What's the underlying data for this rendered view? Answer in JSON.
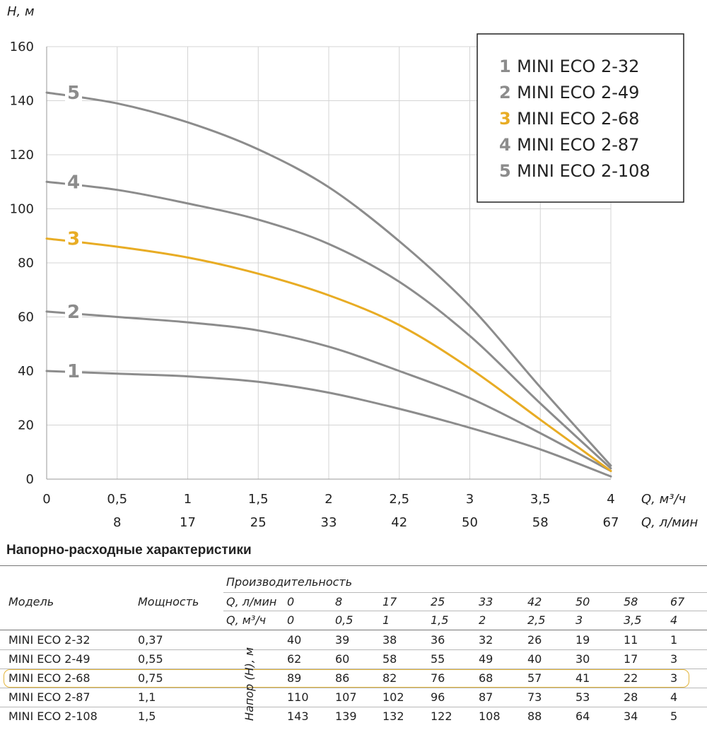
{
  "chart_data": {
    "type": "line",
    "ylabel": "H, м",
    "xlabel_top": "Q, м³/ч",
    "xlabel_bottom": "Q, л/мин",
    "ylim": [
      0,
      160
    ],
    "y_ticks": [
      "0",
      "20",
      "40",
      "60",
      "80",
      "100",
      "120",
      "140",
      "160"
    ],
    "x": [
      0,
      0.5,
      1,
      1.5,
      2,
      2.5,
      3,
      3.5,
      4
    ],
    "x_ticks_top": [
      "0",
      "0,5",
      "1",
      "1,5",
      "2",
      "2,5",
      "3",
      "3,5",
      "4"
    ],
    "x_ticks_bottom": [
      "",
      "8",
      "17",
      "25",
      "33",
      "42",
      "50",
      "58",
      "67"
    ],
    "grid": true,
    "legend_position": "top-right",
    "series": [
      {
        "label": "1",
        "name": "MINI ECO 2-32",
        "color": "#8c8c8c",
        "values": [
          40,
          39,
          38,
          36,
          32,
          26,
          19,
          11,
          1
        ]
      },
      {
        "label": "2",
        "name": "MINI ECO 2-49",
        "color": "#8c8c8c",
        "values": [
          62,
          60,
          58,
          55,
          49,
          40,
          30,
          17,
          3
        ]
      },
      {
        "label": "3",
        "name": "MINI ECO 2-68",
        "color": "#e8ac24",
        "values": [
          89,
          86,
          82,
          76,
          68,
          57,
          41,
          22,
          3
        ]
      },
      {
        "label": "4",
        "name": "MINI ECO 2-87",
        "color": "#8c8c8c",
        "values": [
          110,
          107,
          102,
          96,
          87,
          73,
          53,
          28,
          4
        ]
      },
      {
        "label": "5",
        "name": "MINI ECO 2-108",
        "color": "#8c8c8c",
        "values": [
          143,
          139,
          132,
          122,
          108,
          88,
          64,
          34,
          5
        ]
      }
    ]
  },
  "table": {
    "title": "Напорно-расходные характеристики",
    "col_model": "Модель",
    "col_power": "Мощность",
    "col_perf": "Производительность",
    "q_lmin_label": "Q, л/мин",
    "q_m3h_label": "Q, м³/ч",
    "head_label": "Напор (Н), м",
    "q_lmin": [
      "0",
      "8",
      "17",
      "25",
      "33",
      "42",
      "50",
      "58",
      "67"
    ],
    "q_m3h": [
      "0",
      "0,5",
      "1",
      "1,5",
      "2",
      "2,5",
      "3",
      "3,5",
      "4"
    ],
    "rows": [
      {
        "model": "MINI ECO 2-32",
        "power": "0,37",
        "h": [
          "40",
          "39",
          "38",
          "36",
          "32",
          "26",
          "19",
          "11",
          "1"
        ]
      },
      {
        "model": "MINI ECO 2-49",
        "power": "0,55",
        "h": [
          "62",
          "60",
          "58",
          "55",
          "49",
          "40",
          "30",
          "17",
          "3"
        ]
      },
      {
        "model": "MINI ECO 2-68",
        "power": "0,75",
        "h": [
          "89",
          "86",
          "82",
          "76",
          "68",
          "57",
          "41",
          "22",
          "3"
        ]
      },
      {
        "model": "MINI ECO 2-87",
        "power": "1,1",
        "h": [
          "110",
          "107",
          "102",
          "96",
          "87",
          "73",
          "53",
          "28",
          "4"
        ]
      },
      {
        "model": "MINI ECO 2-108",
        "power": "1,5",
        "h": [
          "143",
          "139",
          "132",
          "122",
          "108",
          "88",
          "64",
          "34",
          "5"
        ]
      }
    ],
    "highlight_row": 2
  }
}
